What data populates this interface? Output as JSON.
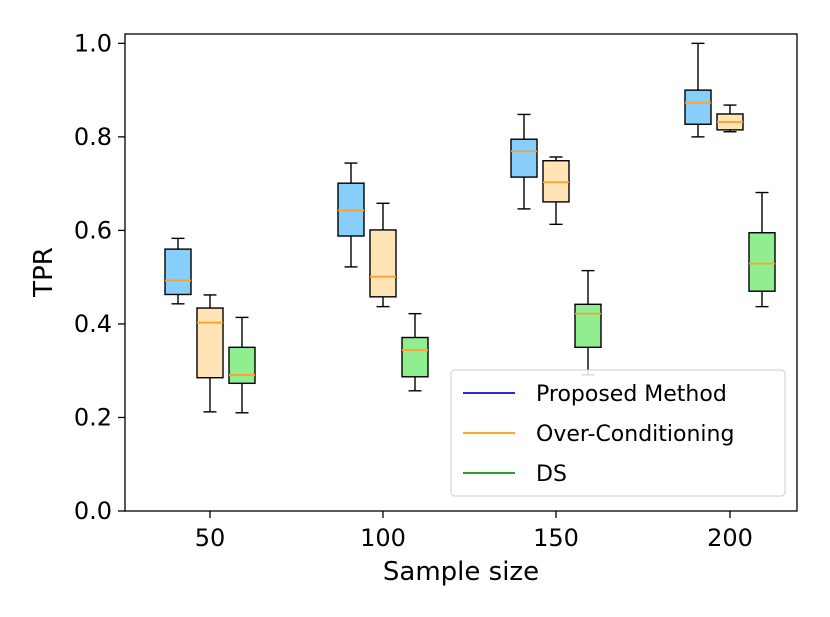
{
  "chart_data": {
    "type": "box",
    "xlabel": "Sample size",
    "ylabel": "TPR",
    "ylim": [
      0.0,
      1.02
    ],
    "yticks": [
      0.0,
      0.2,
      0.4,
      0.6,
      0.8,
      1.0
    ],
    "ytick_labels": [
      "0.0",
      "0.2",
      "0.4",
      "0.6",
      "0.8",
      "1.0"
    ],
    "categories": [
      "50",
      "100",
      "150",
      "200"
    ],
    "legend_position": "bottom-right",
    "series": [
      {
        "name": "Proposed Method",
        "legend_color": "#2b2bd6",
        "fill": "#87cefa",
        "median_color": "#ff9f2e",
        "boxes": [
          {
            "whislo": 0.443,
            "q1": 0.463,
            "med": 0.493,
            "q3": 0.56,
            "whishi": 0.583
          },
          {
            "whislo": 0.522,
            "q1": 0.588,
            "med": 0.643,
            "q3": 0.701,
            "whishi": 0.744
          },
          {
            "whislo": 0.646,
            "q1": 0.714,
            "med": 0.769,
            "q3": 0.795,
            "whishi": 0.848
          },
          {
            "whislo": 0.8,
            "q1": 0.827,
            "med": 0.873,
            "q3": 0.9,
            "whishi": 1.0
          }
        ]
      },
      {
        "name": "Over-Conditioning",
        "legend_color": "#ffa726",
        "fill": "#ffe4b5",
        "median_color": "#ff9f2e",
        "boxes": [
          {
            "whislo": 0.212,
            "q1": 0.285,
            "med": 0.403,
            "q3": 0.434,
            "whishi": 0.462
          },
          {
            "whislo": 0.437,
            "q1": 0.458,
            "med": 0.501,
            "q3": 0.601,
            "whishi": 0.658
          },
          {
            "whislo": 0.613,
            "q1": 0.661,
            "med": 0.703,
            "q3": 0.749,
            "whishi": 0.757
          },
          {
            "whislo": 0.811,
            "q1": 0.815,
            "med": 0.832,
            "q3": 0.849,
            "whishi": 0.868
          }
        ]
      },
      {
        "name": "DS",
        "legend_color": "#2ca02c",
        "fill": "#90ee90",
        "median_color": "#ff9f2e",
        "boxes": [
          {
            "whislo": 0.21,
            "q1": 0.273,
            "med": 0.291,
            "q3": 0.35,
            "whishi": 0.414
          },
          {
            "whislo": 0.257,
            "q1": 0.287,
            "med": 0.344,
            "q3": 0.371,
            "whishi": 0.422
          },
          {
            "whislo": 0.291,
            "q1": 0.35,
            "med": 0.422,
            "q3": 0.442,
            "whishi": 0.514
          },
          {
            "whislo": 0.437,
            "q1": 0.47,
            "med": 0.529,
            "q3": 0.595,
            "whishi": 0.681
          }
        ]
      }
    ]
  }
}
